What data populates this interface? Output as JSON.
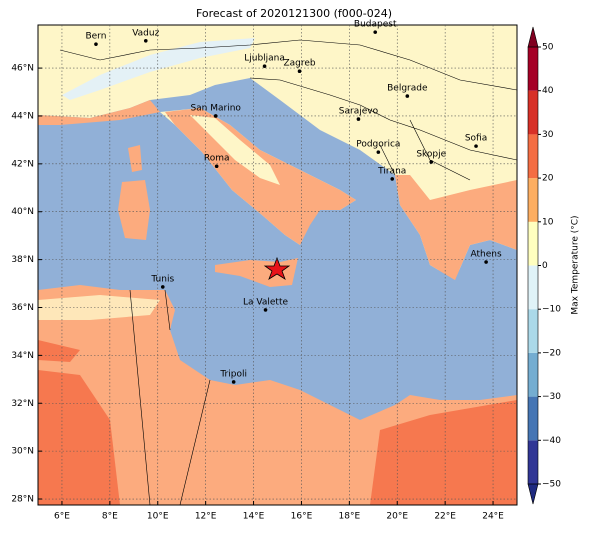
{
  "title": "Forecast of 2020121300 (f000-024)",
  "map": {
    "lonlim": [
      5,
      25
    ],
    "latlim": [
      27.75,
      47.8
    ],
    "lonticks": [
      {
        "value": 6,
        "label": "6°E"
      },
      {
        "value": 8,
        "label": "8°E"
      },
      {
        "value": 10,
        "label": "10°E"
      },
      {
        "value": 12,
        "label": "12°E"
      },
      {
        "value": 14,
        "label": "14°E"
      },
      {
        "value": 16,
        "label": "16°E"
      },
      {
        "value": 18,
        "label": "18°E"
      },
      {
        "value": 20,
        "label": "20°E"
      },
      {
        "value": 22,
        "label": "22°E"
      },
      {
        "value": 24,
        "label": "24°E"
      }
    ],
    "latticks": [
      {
        "value": 28,
        "label": "28°N"
      },
      {
        "value": 30,
        "label": "30°N"
      },
      {
        "value": 32,
        "label": "32°N"
      },
      {
        "value": 34,
        "label": "34°N"
      },
      {
        "value": 36,
        "label": "36°N"
      },
      {
        "value": 38,
        "label": "38°N"
      },
      {
        "value": 40,
        "label": "40°N"
      },
      {
        "value": 42,
        "label": "42°N"
      },
      {
        "value": 44,
        "label": "44°N"
      },
      {
        "value": 46,
        "label": "46°N"
      }
    ],
    "cities": [
      {
        "name": "Bern",
        "lon": 7.42,
        "lat": 47.0
      },
      {
        "name": "Vaduz",
        "lon": 9.5,
        "lat": 47.14
      },
      {
        "name": "Budapest",
        "lon": 19.08,
        "lat": 47.5
      },
      {
        "name": "Ljubljana",
        "lon": 14.46,
        "lat": 46.08
      },
      {
        "name": "Zagreb",
        "lon": 15.92,
        "lat": 45.87
      },
      {
        "name": "Belgrade",
        "lon": 20.42,
        "lat": 44.83
      },
      {
        "name": "San Marino",
        "lon": 12.42,
        "lat": 44.0
      },
      {
        "name": "Sarajevo",
        "lon": 18.38,
        "lat": 43.87
      },
      {
        "name": "Sofia",
        "lon": 23.29,
        "lat": 42.74
      },
      {
        "name": "Roma",
        "lon": 12.46,
        "lat": 41.9
      },
      {
        "name": "Podgorica",
        "lon": 19.21,
        "lat": 42.49
      },
      {
        "name": "Skopje",
        "lon": 21.42,
        "lat": 42.08
      },
      {
        "name": "Tirana",
        "lon": 19.79,
        "lat": 41.37
      },
      {
        "name": "Athens",
        "lon": 23.71,
        "lat": 37.9
      },
      {
        "name": "Tunis",
        "lon": 10.21,
        "lat": 36.86
      },
      {
        "name": "La Valette",
        "lon": 14.5,
        "lat": 35.9
      },
      {
        "name": "Tripoli",
        "lon": 13.17,
        "lat": 32.89
      }
    ]
  },
  "colorbar": {
    "label": "Max Temperature (°C)",
    "lim": [
      -50,
      50
    ],
    "ticks": [
      {
        "value": -50,
        "label": "−50"
      },
      {
        "value": -40,
        "label": "−40"
      },
      {
        "value": -30,
        "label": "−30"
      },
      {
        "value": -20,
        "label": "−20"
      },
      {
        "value": -10,
        "label": "−10"
      },
      0,
      10,
      20,
      30,
      40,
      50
    ],
    "colors": [
      "#313695",
      "#4575b4",
      "#74add1",
      "#abd9e9",
      "#e0f3f8",
      "#ffffbf",
      "#fdae61",
      "#f46d43",
      "#d73027",
      "#a50026"
    ],
    "under": "#1f2a80",
    "over": "#800020"
  }
}
